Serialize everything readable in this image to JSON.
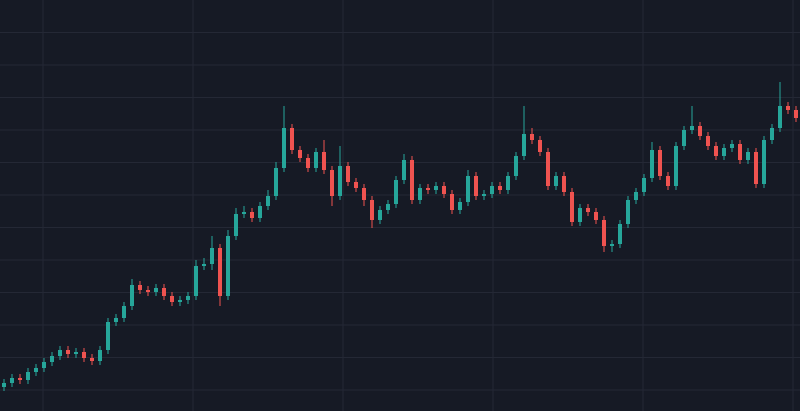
{
  "chart_data": {
    "type": "candlestick",
    "up_color": "#26a69a",
    "down_color": "#ef5350",
    "ylim": [
      0,
      411
    ],
    "open": [
      24,
      28,
      33,
      31,
      39,
      43,
      49,
      55,
      61,
      57,
      59,
      53,
      50,
      61,
      89,
      93,
      105,
      126,
      121,
      119,
      123,
      115,
      109,
      111,
      115,
      145,
      147,
      163,
      115,
      175,
      197,
      199,
      193,
      205,
      215,
      243,
      283,
      261,
      253,
      243,
      259,
      241,
      215,
      245,
      229,
      223,
      211,
      191,
      201,
      207,
      231,
      251,
      211,
      223,
      221,
      225,
      217,
      201,
      209,
      235,
      215,
      217,
      225,
      221,
      235,
      255,
      277,
      271,
      259,
      225,
      235,
      219,
      189,
      203,
      199,
      191,
      165,
      167,
      187,
      211,
      219,
      233,
      261,
      235,
      225,
      265,
      281,
      285,
      275,
      265,
      255,
      263,
      267,
      251,
      259,
      227,
      271,
      283,
      305,
      301
    ],
    "high": [
      32,
      37,
      37,
      43,
      47,
      53,
      59,
      65,
      65,
      63,
      63,
      57,
      65,
      93,
      97,
      109,
      132,
      130,
      125,
      127,
      127,
      119,
      115,
      119,
      151,
      153,
      175,
      167,
      181,
      203,
      205,
      203,
      209,
      221,
      249,
      305,
      287,
      265,
      257,
      263,
      271,
      245,
      265,
      249,
      233,
      227,
      215,
      205,
      211,
      235,
      257,
      255,
      227,
      227,
      229,
      229,
      221,
      213,
      241,
      239,
      221,
      229,
      229,
      239,
      259,
      305,
      283,
      275,
      263,
      239,
      239,
      223,
      207,
      207,
      203,
      195,
      171,
      191,
      215,
      223,
      237,
      269,
      265,
      239,
      269,
      285,
      305,
      289,
      279,
      269,
      267,
      271,
      271,
      263,
      263,
      275,
      287,
      329,
      309,
      305
    ],
    "low": [
      20,
      24,
      27,
      27,
      35,
      39,
      45,
      51,
      53,
      53,
      49,
      46,
      46,
      57,
      85,
      89,
      101,
      117,
      115,
      115,
      111,
      105,
      105,
      107,
      111,
      141,
      141,
      105,
      111,
      171,
      193,
      189,
      189,
      201,
      211,
      239,
      257,
      249,
      239,
      239,
      237,
      205,
      211,
      225,
      219,
      205,
      183,
      187,
      197,
      203,
      227,
      207,
      207,
      217,
      217,
      213,
      197,
      197,
      205,
      211,
      211,
      213,
      217,
      217,
      231,
      251,
      267,
      255,
      221,
      221,
      215,
      185,
      185,
      195,
      187,
      159,
      159,
      163,
      183,
      207,
      215,
      229,
      231,
      221,
      221,
      261,
      277,
      271,
      261,
      251,
      251,
      259,
      247,
      247,
      223,
      223,
      267,
      279,
      297,
      289
    ],
    "close": [
      28,
      33,
      31,
      39,
      43,
      49,
      55,
      61,
      57,
      59,
      53,
      50,
      61,
      89,
      93,
      105,
      126,
      121,
      119,
      123,
      115,
      109,
      111,
      115,
      145,
      147,
      163,
      115,
      175,
      197,
      199,
      193,
      205,
      215,
      243,
      283,
      261,
      253,
      243,
      259,
      241,
      215,
      245,
      229,
      223,
      211,
      191,
      201,
      207,
      231,
      251,
      211,
      223,
      221,
      225,
      217,
      201,
      209,
      235,
      215,
      217,
      225,
      221,
      235,
      255,
      277,
      271,
      259,
      225,
      235,
      219,
      189,
      203,
      199,
      191,
      165,
      167,
      187,
      211,
      219,
      233,
      261,
      235,
      225,
      265,
      281,
      285,
      275,
      265,
      255,
      263,
      267,
      251,
      259,
      227,
      271,
      283,
      305,
      301,
      293
    ]
  }
}
